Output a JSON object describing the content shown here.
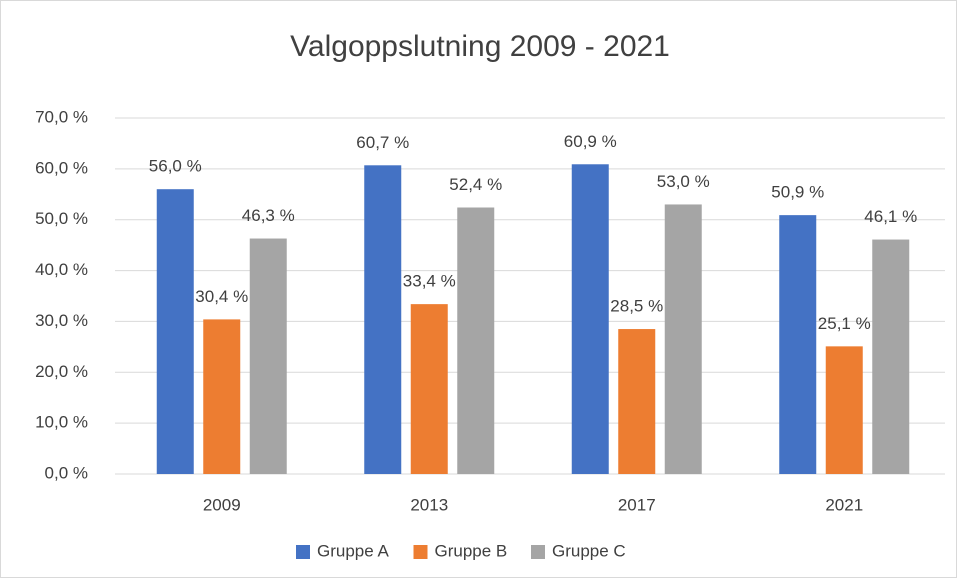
{
  "chart_data": {
    "type": "bar",
    "title": "Valgoppslutning 2009 - 2021",
    "categories": [
      "2009",
      "2013",
      "2017",
      "2021"
    ],
    "series": [
      {
        "name": "Gruppe A",
        "color": "#4472c4",
        "values": [
          56.0,
          60.7,
          60.9,
          50.9
        ],
        "value_labels": [
          "56,0 %",
          "60,7 %",
          "60,9 %",
          "50,9 %"
        ]
      },
      {
        "name": "Gruppe B",
        "color": "#ed7d31",
        "values": [
          30.4,
          33.4,
          28.5,
          25.1
        ],
        "value_labels": [
          "30,4 %",
          "33,4 %",
          "28,5 %",
          "25,1 %"
        ]
      },
      {
        "name": "Gruppe C",
        "color": "#a5a5a5",
        "values": [
          46.3,
          52.4,
          53.0,
          46.1
        ],
        "value_labels": [
          "46,3 %",
          "52,4 %",
          "53,0 %",
          "46,1 %"
        ]
      }
    ],
    "ylim": [
      0,
      70
    ],
    "yticks": [
      {
        "value": 0,
        "label": "0,0 %"
      },
      {
        "value": 10,
        "label": "10,0 %"
      },
      {
        "value": 20,
        "label": "20,0 %"
      },
      {
        "value": 30,
        "label": "30,0 %"
      },
      {
        "value": 40,
        "label": "40,0 %"
      },
      {
        "value": 50,
        "label": "50,0 %"
      },
      {
        "value": 60,
        "label": "60,0 %"
      },
      {
        "value": 70,
        "label": "70,0 %"
      }
    ],
    "grid": true,
    "legend": "bottom"
  }
}
